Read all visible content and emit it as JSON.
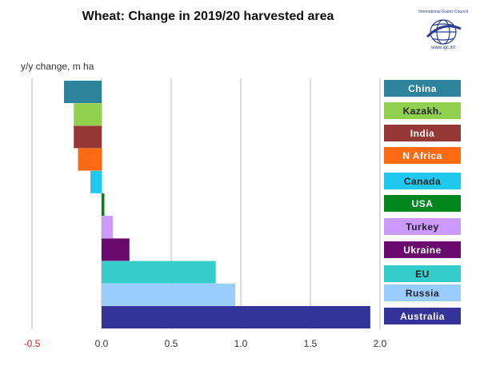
{
  "chart_data": {
    "type": "bar",
    "orientation": "horizontal",
    "title": "Wheat: Change in 2019/20 harvested area",
    "ylabel": "y/y change, m ha",
    "xlim": [
      -0.5,
      2.0
    ],
    "x_ticks": [
      "-0.5",
      "0.0",
      "0.5",
      "1.0",
      "1.5",
      "2.0"
    ],
    "grid": "vertical",
    "legend_position": "right",
    "categories": [
      "China",
      "Kazakh.",
      "India",
      "N Africa",
      "Canada",
      "USA",
      "Turkey",
      "Ukraine",
      "EU",
      "Russia",
      "Australia"
    ],
    "values": [
      -0.27,
      -0.2,
      -0.2,
      -0.17,
      -0.08,
      0.02,
      0.08,
      0.2,
      0.82,
      0.96,
      1.93
    ],
    "colors": [
      "#2e839c",
      "#92d050",
      "#953735",
      "#ff6a13",
      "#1ec8ee",
      "#00851f",
      "#cc99ff",
      "#6b0a6e",
      "#35cdc9",
      "#99ccff",
      "#333399"
    ],
    "legend_text_colors": [
      "#ffffff",
      "#222222",
      "#ffffff",
      "#ffffff",
      "#222222",
      "#ffffff",
      "#222222",
      "#ffffff",
      "#222222",
      "#222222",
      "#ffffff"
    ],
    "negative_tick_color": "#cc2222"
  },
  "logo": {
    "name": "International Grains Council",
    "url": "www.igc.int",
    "icon": "globe-icon"
  }
}
